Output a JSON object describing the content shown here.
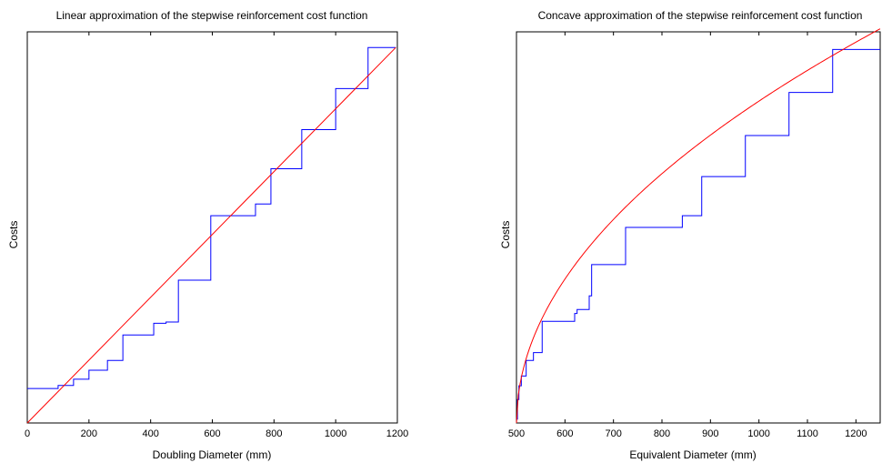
{
  "chart_data": [
    {
      "type": "line",
      "title": "Linear approximation of the stepwise reinforcement cost function",
      "xlabel": "Doubling Diameter (mm)",
      "ylabel": "Costs",
      "xlim": [
        0,
        1200
      ],
      "ylim": [
        0,
        1
      ],
      "xticks": [
        "0",
        "200",
        "400",
        "600",
        "800",
        "1000",
        "1200"
      ],
      "yticks": [],
      "grid": false,
      "series": [
        {
          "role": "stepwise-cost",
          "color": "#0000ff",
          "step": "post",
          "points": [
            [
              0,
              0.088
            ],
            [
              75,
              0.088
            ],
            [
              100,
              0.096
            ],
            [
              150,
              0.112
            ],
            [
              200,
              0.135
            ],
            [
              260,
              0.16
            ],
            [
              310,
              0.225
            ],
            [
              370,
              0.225
            ],
            [
              410,
              0.255
            ],
            [
              450,
              0.258
            ],
            [
              490,
              0.365
            ],
            [
              550,
              0.365
            ],
            [
              595,
              0.53
            ],
            [
              700,
              0.53
            ],
            [
              740,
              0.56
            ],
            [
              790,
              0.65
            ],
            [
              880,
              0.65
            ],
            [
              890,
              0.75
            ],
            [
              990,
              0.75
            ],
            [
              1000,
              0.855
            ],
            [
              1090,
              0.855
            ],
            [
              1105,
              0.96
            ],
            [
              1195,
              0.96
            ]
          ]
        },
        {
          "role": "linear-approximation",
          "color": "#ff0000",
          "x": [
            0,
            1195
          ],
          "y": [
            0,
            0.96
          ]
        }
      ]
    },
    {
      "type": "line",
      "title": "Concave approximation of the stepwise reinforcement cost function",
      "xlabel": "Equivalent Diameter (mm)",
      "ylabel": "Costs",
      "xlim": [
        500,
        1250
      ],
      "ylim": [
        0,
        1
      ],
      "xticks": [
        "500",
        "600",
        "700",
        "800",
        "900",
        "1000",
        "1100",
        "1200"
      ],
      "yticks": [],
      "grid": false,
      "series": [
        {
          "role": "stepwise-cost",
          "color": "#0000ff",
          "step": "post",
          "points": [
            [
              500,
              0.01
            ],
            [
              502,
              0.06
            ],
            [
              505,
              0.095
            ],
            [
              510,
              0.12
            ],
            [
              520,
              0.16
            ],
            [
              535,
              0.18
            ],
            [
              553,
              0.26
            ],
            [
              592,
              0.26
            ],
            [
              620,
              0.28
            ],
            [
              625,
              0.29
            ],
            [
              650,
              0.325
            ],
            [
              655,
              0.405
            ],
            [
              722,
              0.405
            ],
            [
              725,
              0.5
            ],
            [
              838,
              0.5
            ],
            [
              842,
              0.53
            ],
            [
              882,
              0.63
            ],
            [
              968,
              0.63
            ],
            [
              972,
              0.735
            ],
            [
              1058,
              0.735
            ],
            [
              1062,
              0.845
            ],
            [
              1150,
              0.845
            ],
            [
              1152,
              0.955
            ],
            [
              1250,
              0.955
            ]
          ]
        },
        {
          "role": "concave-approximation",
          "color": "#ff0000",
          "sqrt_scale": 0.0368,
          "x_start": 500
        }
      ]
    }
  ]
}
